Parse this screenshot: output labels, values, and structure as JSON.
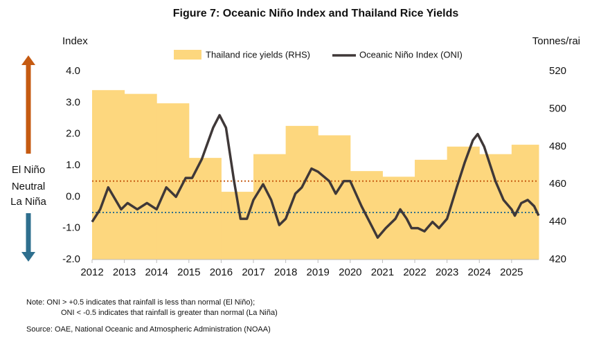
{
  "chart_data": {
    "type": "step-area-line",
    "title": "Figure 7: Oceanic Niño Index and Thailand Rice Yields",
    "y_label": "Index",
    "y2_label": "Tonnes/rai",
    "xlim": [
      2012,
      2025.84
    ],
    "xticks": [
      2012,
      2013,
      2014,
      2015,
      2016,
      2017,
      2018,
      2019,
      2020,
      2021,
      2022,
      2023,
      2024,
      2025
    ],
    "ylim": [
      -2,
      4
    ],
    "yticks": [
      {
        "value": -2,
        "label": "-2.0"
      },
      {
        "value": -1,
        "label": "-1.0"
      },
      {
        "value": 0,
        "label": "0.0"
      },
      {
        "value": 1,
        "label": "1.0"
      },
      {
        "value": 2,
        "label": "2.0"
      },
      {
        "value": 3,
        "label": "3.0"
      },
      {
        "value": 4,
        "label": "4.0"
      }
    ],
    "y2lim": [
      420,
      520
    ],
    "y2ticks": [
      420,
      440,
      460,
      480,
      500,
      520
    ],
    "series": [
      {
        "name": "Thailand rice yields (RHS)",
        "color": "#fdd77e",
        "axis": "y2",
        "type": "area",
        "x": [
          2012,
          2013,
          2014,
          2015,
          2016,
          2017,
          2018,
          2019,
          2020,
          2021,
          2022,
          2023,
          2024,
          2025
        ],
        "values": [
          510,
          508,
          503,
          474,
          456,
          476,
          491,
          486,
          467,
          464,
          473,
          480,
          476,
          481
        ]
      },
      {
        "name": "Oceanic Niño Index (ONI)",
        "color": "#3f3838",
        "type": "line",
        "x": [
          2012.0,
          2012.25,
          2012.5,
          2012.9,
          2013.1,
          2013.4,
          2013.7,
          2014.0,
          2014.3,
          2014.6,
          2014.9,
          2015.1,
          2015.4,
          2015.75,
          2015.95,
          2016.15,
          2016.4,
          2016.6,
          2016.8,
          2017.0,
          2017.3,
          2017.55,
          2017.8,
          2018.0,
          2018.3,
          2018.5,
          2018.8,
          2019.0,
          2019.35,
          2019.55,
          2019.8,
          2020.0,
          2020.35,
          2020.65,
          2020.85,
          2021.1,
          2021.4,
          2021.55,
          2021.75,
          2021.9,
          2022.1,
          2022.3,
          2022.55,
          2022.75,
          2023.0,
          2023.3,
          2023.55,
          2023.8,
          2023.95,
          2024.15,
          2024.5,
          2024.75,
          2025.0,
          2025.1,
          2025.3,
          2025.5,
          2025.7,
          2025.84
        ],
        "values": [
          -0.8,
          -0.4,
          0.3,
          -0.4,
          -0.2,
          -0.4,
          -0.2,
          -0.4,
          0.3,
          0.0,
          0.6,
          0.6,
          1.2,
          2.2,
          2.6,
          2.2,
          0.5,
          -0.7,
          -0.7,
          -0.1,
          0.4,
          -0.1,
          -0.9,
          -0.7,
          0.1,
          0.3,
          0.9,
          0.8,
          0.5,
          0.1,
          0.5,
          0.5,
          -0.3,
          -0.9,
          -1.3,
          -1.0,
          -0.7,
          -0.4,
          -0.7,
          -1.0,
          -1.0,
          -1.1,
          -0.8,
          -1.0,
          -0.7,
          0.3,
          1.1,
          1.8,
          2.0,
          1.6,
          0.5,
          -0.1,
          -0.4,
          -0.6,
          -0.2,
          -0.1,
          -0.3,
          -0.6
        ]
      }
    ],
    "thresholds": [
      {
        "value": 0.5,
        "color": "#c55a11"
      },
      {
        "value": -0.5,
        "color": "#2e6f8e"
      }
    ],
    "phase_labels": [
      {
        "text": "El Niño",
        "color": "#c55a11"
      },
      {
        "text": "Neutral",
        "color": "#111111"
      },
      {
        "text": "La Niña",
        "color": "#2e6f8e"
      }
    ],
    "notes": [
      "Note:  ONI > +0.5 indicates that rainfall is less than normal (El Niño);",
      "ONI < -0.5 indicates that rainfall is greater than normal (La Niña)",
      "Source: OAE, National Oceanic and Atmospheric Administration (NOAA)"
    ]
  }
}
